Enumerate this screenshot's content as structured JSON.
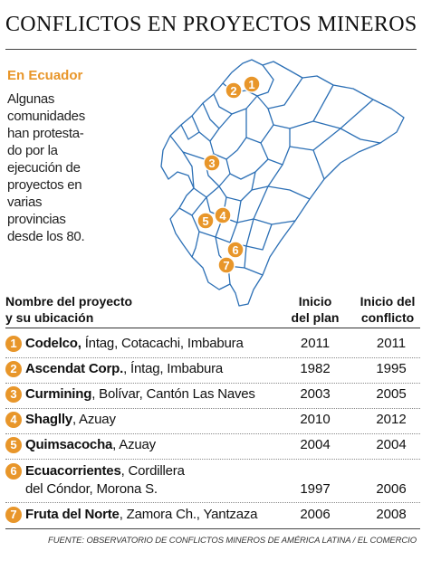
{
  "title": "CONFLICTOS EN PROYECTOS MINEROS",
  "subtitle": "En Ecuador",
  "intro": [
    "Algunas",
    "comunidades",
    "han protesta-",
    "do por la",
    "ejecución de",
    "proyectos en",
    "varias",
    "provincias",
    "desde los 80."
  ],
  "headers": {
    "name": [
      "Nombre del proyecto",
      "y su ubicación"
    ],
    "plan": [
      "Inicio",
      "del plan"
    ],
    "conflict": [
      "Inicio del",
      "conflicto"
    ]
  },
  "rows": [
    {
      "num": "1",
      "name": "Codelco,",
      "location": " Íntag, Cotacachi, Imbabura",
      "plan": "2011",
      "conflict": "2011"
    },
    {
      "num": "2",
      "name": "Ascendat Corp.",
      "location": ", Íntag, Imbabura",
      "plan": "1982",
      "conflict": "1995"
    },
    {
      "num": "3",
      "name": "Curmining",
      "location": ", Bolívar, Cantón Las Naves",
      "plan": "2003",
      "conflict": "2005"
    },
    {
      "num": "4",
      "name": "Shaglly",
      "location": ", Azuay",
      "plan": "2010",
      "conflict": "2012"
    },
    {
      "num": "5",
      "name": "Quimsacocha",
      "location": ", Azuay",
      "plan": "2004",
      "conflict": "2004"
    },
    {
      "num": "6",
      "name": "Ecuacorrientes",
      "location": ", Cordillera",
      "location2": "del Cóndor, Morona S.",
      "plan": "1997",
      "conflict": "2006"
    },
    {
      "num": "7",
      "name": "Fruta del Norte",
      "location": ", Zamora Ch., Yantzaza",
      "plan": "2006",
      "conflict": "2008"
    }
  ],
  "map_pins": [
    "1",
    "2",
    "3",
    "4",
    "5",
    "6",
    "7"
  ],
  "source": "FUENTE: OBSERVATORIO DE CONFLICTOS MINEROS DE AMÉRICA LATINA / EL COMERCIO",
  "colors": {
    "accent": "#e8962a",
    "map_line": "#2b6fb5"
  }
}
